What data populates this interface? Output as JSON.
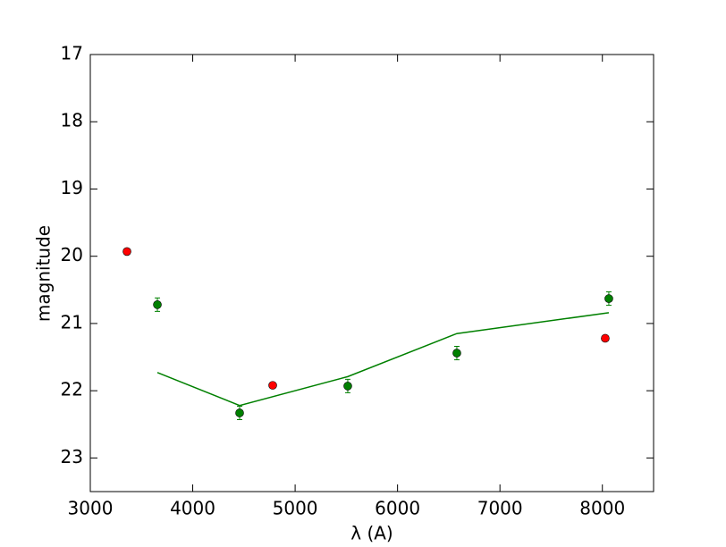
{
  "chart_data": {
    "type": "scatter",
    "x_label": "λ (A)",
    "y_label": "magnitude",
    "xlim": [
      3000,
      8500
    ],
    "xticks": [
      3000,
      4000,
      5000,
      6000,
      7000,
      8000
    ],
    "ylim": [
      23.5,
      17
    ],
    "yticks": [
      17,
      18,
      19,
      20,
      21,
      22,
      23
    ],
    "series": [
      {
        "style": "line",
        "color": "#008000",
        "x": [
          3655,
          4458,
          5514,
          6579,
          8063
        ],
        "values": [
          21.73,
          22.22,
          21.79,
          21.15,
          20.84
        ]
      },
      {
        "style": "markers",
        "color": "#008000",
        "x": [
          3655,
          4458,
          5514,
          6579,
          8063
        ],
        "values": [
          20.72,
          22.33,
          21.93,
          21.44,
          20.63
        ],
        "errors": [
          0.1,
          0.1,
          0.1,
          0.1,
          0.1
        ]
      },
      {
        "style": "markers",
        "color": "#ff0000",
        "x": [
          3358,
          4781,
          8028
        ],
        "values": [
          19.93,
          21.92,
          21.22
        ]
      }
    ]
  }
}
